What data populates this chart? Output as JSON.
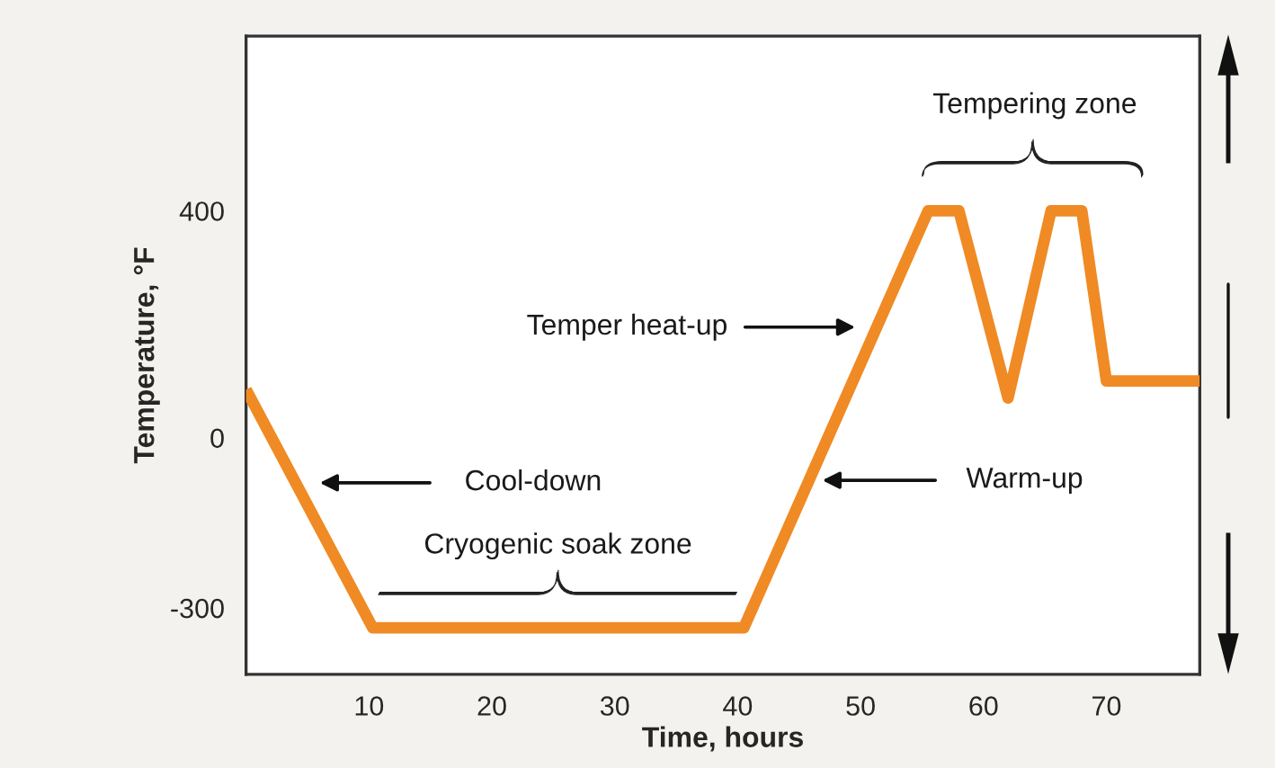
{
  "chart_data": {
    "type": "line",
    "xlabel": "Time, hours",
    "ylabel": "Temperature, °F",
    "x": [
      0,
      10.3,
      40.5,
      55.5,
      58,
      62,
      65.5,
      68,
      70,
      77.6
    ],
    "series": [
      {
        "color": "#f08a24",
        "values": [
          85,
          -335,
          -335,
          400,
          400,
          70,
          400,
          400,
          100,
          100
        ]
      }
    ],
    "line_style": "solid",
    "xlim": [
      0,
      77.6
    ],
    "ylim": [
      -417,
      708
    ],
    "xticks": [
      10,
      20,
      30,
      40,
      50,
      60,
      70
    ],
    "yticks": [
      -300,
      0,
      400
    ],
    "annotations": [
      "Cool-down",
      "Warm-up",
      "Temper heat-up",
      "Cryogenic soak zone",
      "Tempering zone"
    ]
  }
}
